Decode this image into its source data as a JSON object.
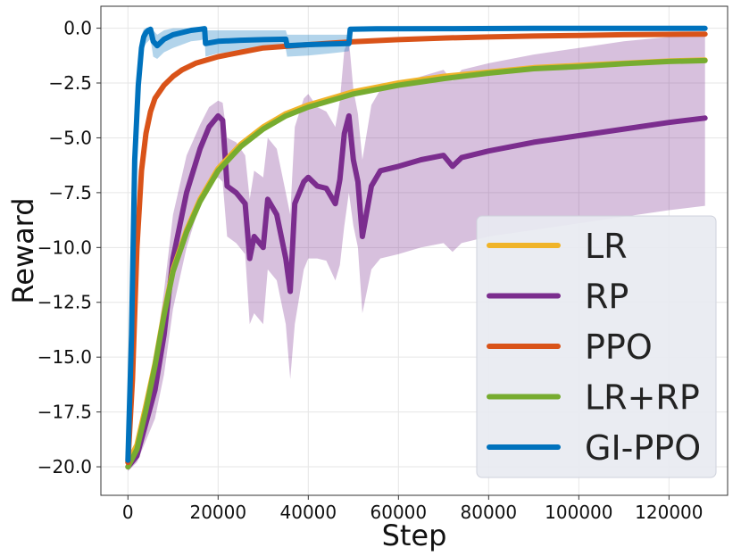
{
  "chart_data": {
    "type": "line",
    "title": "",
    "xlabel": "Step",
    "ylabel": "Reward",
    "xlim": [
      -6000,
      133000
    ],
    "ylim": [
      -21.3,
      1.0
    ],
    "x_ticks": [
      0,
      20000,
      40000,
      60000,
      80000,
      100000,
      120000
    ],
    "y_ticks": [
      0.0,
      -2.5,
      -5.0,
      -7.5,
      -10.0,
      -12.5,
      -15.0,
      -17.5,
      -20.0
    ],
    "x_tick_labels": [
      "0",
      "20000",
      "40000",
      "60000",
      "80000",
      "100000",
      "120000"
    ],
    "y_tick_labels": [
      "0.0",
      "−2.5",
      "−5.0",
      "−7.5",
      "−10.0",
      "−12.5",
      "−15.0",
      "−17.5",
      "−20.0"
    ],
    "grid": true,
    "legend_position": "lower-right",
    "series": [
      {
        "name": "LR",
        "color": "#F0B429",
        "x": [
          0,
          2000,
          4000,
          6000,
          8000,
          10000,
          13000,
          16000,
          20000,
          25000,
          30000,
          35000,
          40000,
          50000,
          60000,
          70000,
          80000,
          90000,
          100000,
          110000,
          120000,
          128000
        ],
        "y": [
          -19.8,
          -19.0,
          -17.2,
          -15.3,
          -13.0,
          -11.0,
          -9.2,
          -7.8,
          -6.4,
          -5.3,
          -4.5,
          -3.9,
          -3.5,
          -2.9,
          -2.5,
          -2.2,
          -2.0,
          -1.8,
          -1.7,
          -1.6,
          -1.5,
          -1.45
        ],
        "band_lower": [],
        "band_upper": []
      },
      {
        "name": "RP",
        "color": "#7B2D8E",
        "x": [
          0,
          2000,
          4000,
          6000,
          8000,
          10000,
          13000,
          16000,
          18000,
          20000,
          21000,
          22000,
          24000,
          26000,
          27000,
          28000,
          30000,
          31000,
          33000,
          35000,
          36000,
          37000,
          39000,
          40000,
          42000,
          44000,
          46000,
          47000,
          48000,
          49000,
          50000,
          51000,
          52000,
          54000,
          56000,
          60000,
          65000,
          70000,
          72000,
          74000,
          80000,
          90000,
          100000,
          110000,
          120000,
          128000
        ],
        "y": [
          -20.0,
          -19.5,
          -18.0,
          -16.5,
          -14.0,
          -10.5,
          -7.5,
          -5.5,
          -4.5,
          -4.0,
          -4.2,
          -7.2,
          -7.5,
          -8.0,
          -10.5,
          -9.5,
          -10.0,
          -7.8,
          -8.5,
          -10.5,
          -12.0,
          -8.0,
          -7.0,
          -6.8,
          -7.2,
          -7.3,
          -8.0,
          -6.9,
          -4.8,
          -4.0,
          -6.0,
          -7.0,
          -9.5,
          -7.2,
          -6.5,
          -6.3,
          -6.0,
          -5.8,
          -6.3,
          -5.9,
          -5.6,
          -5.2,
          -4.9,
          -4.6,
          -4.3,
          -4.1
        ],
        "band_lower": [
          -20.2,
          -19.8,
          -18.8,
          -17.8,
          -15.8,
          -12.8,
          -10.0,
          -8.0,
          -7.2,
          -6.8,
          -7.0,
          -9.5,
          -9.8,
          -10.3,
          -13.5,
          -13.0,
          -13.5,
          -11.0,
          -11.5,
          -13.5,
          -16.0,
          -13.5,
          -11.0,
          -10.5,
          -10.5,
          -10.6,
          -11.5,
          -10.8,
          -9.0,
          -7.5,
          -9.0,
          -10.0,
          -13.0,
          -11.0,
          -10.5,
          -10.3,
          -10.0,
          -9.8,
          -10.2,
          -9.8,
          -9.5,
          -9.2,
          -8.9,
          -8.6,
          -8.3,
          -8.1
        ],
        "band_upper": [
          -19.6,
          -19.0,
          -17.0,
          -15.0,
          -12.0,
          -8.5,
          -5.8,
          -4.4,
          -3.6,
          -3.3,
          -3.4,
          -5.0,
          -5.2,
          -5.8,
          -7.8,
          -6.5,
          -6.8,
          -5.0,
          -5.5,
          -7.5,
          -8.5,
          -4.5,
          -3.2,
          -3.0,
          -3.6,
          -3.8,
          -4.5,
          -3.3,
          -1.0,
          -0.5,
          -2.8,
          -3.9,
          -6.0,
          -3.5,
          -2.8,
          -2.6,
          -2.2,
          -1.9,
          -2.4,
          -1.9,
          -1.6,
          -1.2,
          -0.9,
          -0.6,
          -0.4,
          -0.3
        ]
      },
      {
        "name": "PPO",
        "color": "#D95319",
        "x": [
          0,
          1000,
          2000,
          3000,
          4000,
          5000,
          6000,
          8000,
          10000,
          12000,
          15000,
          20000,
          25000,
          30000,
          40000,
          50000,
          60000,
          70000,
          80000,
          90000,
          100000,
          110000,
          120000,
          128000
        ],
        "y": [
          -19.8,
          -16.0,
          -10.0,
          -6.5,
          -4.8,
          -3.8,
          -3.2,
          -2.6,
          -2.2,
          -1.9,
          -1.6,
          -1.3,
          -1.1,
          -0.9,
          -0.75,
          -0.62,
          -0.52,
          -0.45,
          -0.4,
          -0.36,
          -0.33,
          -0.3,
          -0.28,
          -0.27
        ],
        "band_lower": [],
        "band_upper": []
      },
      {
        "name": "LR+RP",
        "color": "#77AC30",
        "x": [
          0,
          2000,
          4000,
          6000,
          8000,
          10000,
          13000,
          16000,
          20000,
          25000,
          30000,
          35000,
          40000,
          50000,
          60000,
          70000,
          80000,
          90000,
          100000,
          110000,
          120000,
          128000
        ],
        "y": [
          -20.0,
          -19.2,
          -17.4,
          -15.4,
          -13.1,
          -11.1,
          -9.3,
          -7.9,
          -6.5,
          -5.4,
          -4.6,
          -4.0,
          -3.6,
          -3.0,
          -2.6,
          -2.3,
          -2.05,
          -1.85,
          -1.75,
          -1.62,
          -1.52,
          -1.48
        ],
        "band_lower": [],
        "band_upper": []
      },
      {
        "name": "GI-PPO",
        "color": "#0072BD",
        "x": [
          0,
          800,
          1500,
          2300,
          3000,
          3500,
          4000,
          4500,
          5000,
          5600,
          6500,
          8000,
          10000,
          12000,
          14000,
          16000,
          17000,
          17200,
          20000,
          25000,
          30000,
          35000,
          35300,
          40000,
          45000,
          49000,
          49300,
          55000,
          70000,
          90000,
          110000,
          128000
        ],
        "y": [
          -19.7,
          -14.0,
          -6.0,
          -2.6,
          -0.9,
          -0.4,
          -0.2,
          -0.1,
          -0.05,
          -0.6,
          -0.8,
          -0.5,
          -0.3,
          -0.2,
          -0.1,
          -0.05,
          -0.02,
          -0.7,
          -0.6,
          -0.55,
          -0.52,
          -0.5,
          -0.8,
          -0.75,
          -0.72,
          -0.7,
          -0.05,
          -0.03,
          -0.02,
          -0.01,
          -0.01,
          -0.01
        ],
        "band_lower": [
          -19.9,
          -15.5,
          -8.0,
          -3.8,
          -1.6,
          -0.9,
          -0.7,
          -0.6,
          -0.5,
          -1.3,
          -1.4,
          -1.1,
          -0.9,
          -0.75,
          -0.6,
          -0.55,
          -0.5,
          -1.3,
          -1.15,
          -1.05,
          -1.0,
          -0.95,
          -1.3,
          -1.25,
          -1.15,
          -1.05,
          -0.1,
          -0.06,
          -0.04,
          -0.03,
          -0.03,
          -0.03
        ],
        "band_upper": [
          -19.5,
          -12.5,
          -4.0,
          -1.4,
          -0.3,
          -0.05,
          0.0,
          0.0,
          0.0,
          -0.1,
          -0.3,
          -0.1,
          0.0,
          0.0,
          0.0,
          0.0,
          0.0,
          -0.1,
          -0.1,
          -0.1,
          -0.1,
          -0.1,
          -0.3,
          -0.3,
          -0.3,
          -0.3,
          0.0,
          0.0,
          0.0,
          0.0,
          0.0,
          0.0
        ]
      }
    ]
  }
}
